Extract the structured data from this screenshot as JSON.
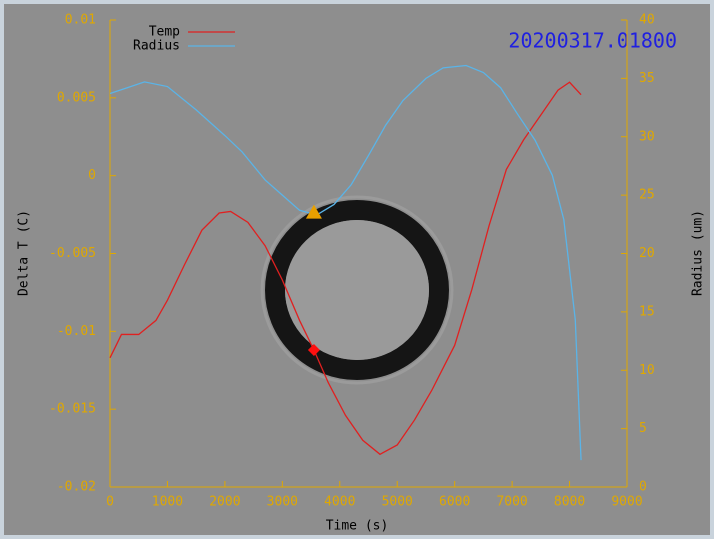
{
  "chart_data": {
    "type": "line",
    "xlabel": "Time (s)",
    "ylabel": "Delta T (C)",
    "y2label": "Radius (um)",
    "annotation": "20200317.01800",
    "annotation_color": "#2020e0",
    "xlim": [
      0,
      9000
    ],
    "xticks": [
      0,
      1000,
      2000,
      3000,
      4000,
      5000,
      6000,
      7000,
      8000,
      9000
    ],
    "ylim": [
      -0.02,
      0.01
    ],
    "yticks": [
      -0.02,
      -0.015,
      -0.01,
      -0.005,
      0,
      0.005,
      0.01
    ],
    "y2lim": [
      0,
      40
    ],
    "y2ticks": [
      0,
      5,
      10,
      15,
      20,
      25,
      30,
      35,
      40
    ],
    "axis_color": "#e0a800",
    "legend": "upper left",
    "series": [
      {
        "name": "Temp",
        "color": "#e02020",
        "axis": "y",
        "x": [
          0,
          200,
          500,
          800,
          1000,
          1300,
          1600,
          1900,
          2100,
          2400,
          2700,
          3000,
          3300,
          3550,
          3800,
          4100,
          4400,
          4700,
          5000,
          5300,
          5600,
          6000,
          6300,
          6600,
          6900,
          7200,
          7500,
          7800,
          8000,
          8200
        ],
        "values": [
          -0.0117,
          -0.0102,
          -0.0102,
          -0.0093,
          -0.008,
          -0.0057,
          -0.0035,
          -0.0024,
          -0.0023,
          -0.003,
          -0.0045,
          -0.0067,
          -0.0093,
          -0.0112,
          -0.0133,
          -0.0154,
          -0.017,
          -0.0179,
          -0.0173,
          -0.0157,
          -0.0138,
          -0.0109,
          -0.0073,
          -0.0032,
          0.0004,
          0.0023,
          0.0039,
          0.0055,
          0.006,
          0.0052
        ]
      },
      {
        "name": "Radius",
        "color": "#5ab4e8",
        "axis": "y2",
        "x": [
          0,
          300,
          600,
          1000,
          1500,
          2000,
          2300,
          2700,
          3000,
          3300,
          3600,
          3900,
          4200,
          4500,
          4800,
          5100,
          5500,
          5800,
          6200,
          6500,
          6800,
          7100,
          7400,
          7700,
          7900,
          8100,
          8200
        ],
        "values": [
          33.7,
          34.2,
          34.7,
          34.3,
          32.3,
          30.1,
          28.7,
          26.3,
          25.0,
          23.7,
          23.3,
          24.2,
          25.9,
          28.4,
          31,
          33.1,
          35,
          35.9,
          36.1,
          35.5,
          34.2,
          31.9,
          29.7,
          26.7,
          22.9,
          14.3,
          2.3
        ]
      }
    ],
    "markers": [
      {
        "shape": "triangle",
        "color": "#e8a000",
        "axis": "y2",
        "x": 3550,
        "value": 23.5
      },
      {
        "shape": "diamond",
        "color": "#ff1010",
        "axis": "y",
        "x": 3550,
        "value": -0.0112
      }
    ]
  }
}
